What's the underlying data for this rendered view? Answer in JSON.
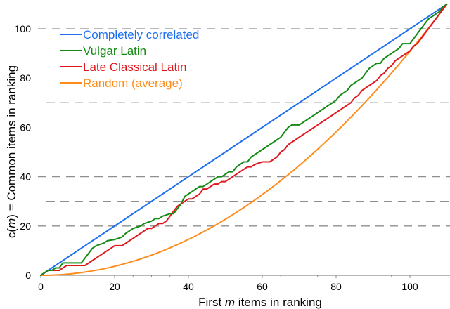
{
  "chart_data": {
    "type": "line",
    "title": "",
    "xlabel": "First m items in ranking",
    "xlabel_parts": [
      "First ",
      "m",
      " items in ranking"
    ],
    "ylabel": "c(m) = Common items in ranking",
    "ylabel_parts": [
      "c(",
      "m",
      ") = Common items in ranking"
    ],
    "xlim": [
      0,
      110
    ],
    "ylim": [
      0,
      110
    ],
    "xticks": [
      0,
      20,
      40,
      60,
      80,
      100
    ],
    "yticks": [
      0,
      20,
      40,
      60,
      80,
      100
    ],
    "x_minor_ticks": [
      25,
      30,
      35,
      65,
      75,
      90,
      95
    ],
    "gridlines_y": [
      20,
      30,
      40,
      70,
      100
    ],
    "grid_style": "dashed",
    "legend_position": "upper-left",
    "series": [
      {
        "name": "Completely correlated",
        "color": "#1f6ff0",
        "points": [
          [
            0,
            0
          ],
          [
            110,
            110
          ]
        ]
      },
      {
        "name": "Vulgar Latin",
        "color": "#138a13",
        "points": [
          [
            0,
            0
          ],
          [
            2,
            2
          ],
          [
            3,
            2
          ],
          [
            4,
            3
          ],
          [
            5,
            3
          ],
          [
            6,
            5
          ],
          [
            11,
            5
          ],
          [
            12,
            7
          ],
          [
            13,
            9
          ],
          [
            14,
            11
          ],
          [
            15,
            12
          ],
          [
            16,
            12.5
          ],
          [
            17,
            13
          ],
          [
            18,
            14
          ],
          [
            20,
            14.5
          ],
          [
            21,
            15
          ],
          [
            22,
            15.5
          ],
          [
            23,
            17
          ],
          [
            24,
            18
          ],
          [
            25,
            19
          ],
          [
            26,
            19.5
          ],
          [
            27,
            20
          ],
          [
            28,
            21
          ],
          [
            30,
            22
          ],
          [
            31,
            23
          ],
          [
            32,
            23
          ],
          [
            33,
            24
          ],
          [
            35,
            25
          ],
          [
            36,
            25
          ],
          [
            37,
            27
          ],
          [
            38,
            29
          ],
          [
            39,
            32
          ],
          [
            40,
            33
          ],
          [
            41,
            34
          ],
          [
            42,
            35
          ],
          [
            43,
            36
          ],
          [
            44,
            36
          ],
          [
            45,
            37
          ],
          [
            46,
            38
          ],
          [
            47,
            39
          ],
          [
            48,
            40
          ],
          [
            49,
            40
          ],
          [
            50,
            41
          ],
          [
            51,
            42
          ],
          [
            52,
            42
          ],
          [
            53,
            44
          ],
          [
            54,
            45
          ],
          [
            55,
            46
          ],
          [
            56,
            46
          ],
          [
            57,
            48
          ],
          [
            58,
            49
          ],
          [
            59,
            50
          ],
          [
            60,
            51
          ],
          [
            61,
            52
          ],
          [
            62,
            53
          ],
          [
            63,
            54
          ],
          [
            64,
            55
          ],
          [
            65,
            56
          ],
          [
            66,
            58
          ],
          [
            67,
            60
          ],
          [
            68,
            61
          ],
          [
            70,
            61
          ],
          [
            71,
            62
          ],
          [
            72,
            63
          ],
          [
            73,
            64
          ],
          [
            74,
            65
          ],
          [
            75,
            66
          ],
          [
            76,
            67
          ],
          [
            77,
            68
          ],
          [
            78,
            69
          ],
          [
            79,
            70
          ],
          [
            80,
            71
          ],
          [
            81,
            73
          ],
          [
            82,
            74
          ],
          [
            83,
            75
          ],
          [
            84,
            77
          ],
          [
            85,
            78
          ],
          [
            86,
            79
          ],
          [
            87,
            80
          ],
          [
            88,
            82
          ],
          [
            89,
            84
          ],
          [
            90,
            85
          ],
          [
            91,
            86
          ],
          [
            92,
            86
          ],
          [
            93,
            88
          ],
          [
            94,
            89
          ],
          [
            95,
            90
          ],
          [
            96,
            91
          ],
          [
            97,
            92
          ],
          [
            98,
            94
          ],
          [
            100,
            94
          ],
          [
            101,
            96
          ],
          [
            102,
            98
          ],
          [
            103,
            100
          ],
          [
            104,
            102
          ],
          [
            105,
            104
          ],
          [
            106,
            105
          ],
          [
            107,
            106
          ],
          [
            108,
            107
          ],
          [
            109,
            109
          ],
          [
            110,
            110
          ]
        ]
      },
      {
        "name": "Late Classical Latin",
        "color": "#e0161c",
        "points": [
          [
            0,
            0
          ],
          [
            2,
            2
          ],
          [
            5,
            2
          ],
          [
            6,
            3
          ],
          [
            7,
            4
          ],
          [
            12,
            4
          ],
          [
            13,
            5
          ],
          [
            14,
            6
          ],
          [
            15,
            7
          ],
          [
            16,
            8
          ],
          [
            17,
            9
          ],
          [
            18,
            10
          ],
          [
            19,
            11
          ],
          [
            20,
            12
          ],
          [
            21,
            12
          ],
          [
            22,
            12
          ],
          [
            23,
            13
          ],
          [
            24,
            14
          ],
          [
            25,
            15
          ],
          [
            26,
            16
          ],
          [
            27,
            17
          ],
          [
            28,
            18
          ],
          [
            29,
            19
          ],
          [
            30,
            19
          ],
          [
            31,
            20
          ],
          [
            32,
            21
          ],
          [
            33,
            21
          ],
          [
            34,
            22
          ],
          [
            35,
            24
          ],
          [
            36,
            26
          ],
          [
            37,
            28
          ],
          [
            38,
            29
          ],
          [
            39,
            30
          ],
          [
            40,
            31
          ],
          [
            41,
            31
          ],
          [
            42,
            32
          ],
          [
            43,
            33
          ],
          [
            44,
            35
          ],
          [
            45,
            35
          ],
          [
            46,
            36
          ],
          [
            47,
            37
          ],
          [
            48,
            37
          ],
          [
            49,
            38
          ],
          [
            50,
            38
          ],
          [
            51,
            39
          ],
          [
            52,
            40
          ],
          [
            53,
            41
          ],
          [
            54,
            42
          ],
          [
            55,
            43
          ],
          [
            56,
            44
          ],
          [
            57,
            44
          ],
          [
            58,
            45
          ],
          [
            60,
            46
          ],
          [
            62,
            46
          ],
          [
            63,
            47
          ],
          [
            64,
            48
          ],
          [
            65,
            50
          ],
          [
            66,
            51
          ],
          [
            67,
            53
          ],
          [
            68,
            54
          ],
          [
            69,
            55
          ],
          [
            70,
            56
          ],
          [
            71,
            57
          ],
          [
            72,
            58
          ],
          [
            73,
            59
          ],
          [
            74,
            60
          ],
          [
            75,
            61
          ],
          [
            76,
            62
          ],
          [
            77,
            63
          ],
          [
            78,
            64
          ],
          [
            79,
            65
          ],
          [
            80,
            66
          ],
          [
            81,
            67
          ],
          [
            82,
            68
          ],
          [
            83,
            69
          ],
          [
            84,
            70
          ],
          [
            85,
            72
          ],
          [
            86,
            73
          ],
          [
            87,
            75
          ],
          [
            88,
            76
          ],
          [
            89,
            77
          ],
          [
            90,
            78
          ],
          [
            91,
            79
          ],
          [
            92,
            81
          ],
          [
            93,
            82
          ],
          [
            94,
            84
          ],
          [
            95,
            85
          ],
          [
            96,
            87
          ],
          [
            97,
            88
          ],
          [
            98,
            89
          ],
          [
            99,
            90
          ],
          [
            100,
            91
          ],
          [
            101,
            93
          ],
          [
            102,
            94
          ],
          [
            103,
            96
          ],
          [
            104,
            98
          ],
          [
            105,
            100
          ],
          [
            106,
            102
          ],
          [
            107,
            104
          ],
          [
            108,
            106
          ],
          [
            109,
            108
          ],
          [
            110,
            110
          ]
        ]
      },
      {
        "name": "Random (average)",
        "color": "#ff8c1a",
        "formula": "c = m^2 / 110",
        "points": [
          [
            0,
            0
          ],
          [
            10,
            0.91
          ],
          [
            20,
            3.64
          ],
          [
            30,
            8.18
          ],
          [
            40,
            14.55
          ],
          [
            50,
            22.73
          ],
          [
            60,
            32.73
          ],
          [
            70,
            44.55
          ],
          [
            80,
            58.18
          ],
          [
            90,
            73.64
          ],
          [
            100,
            90.91
          ],
          [
            110,
            110
          ]
        ]
      }
    ]
  }
}
